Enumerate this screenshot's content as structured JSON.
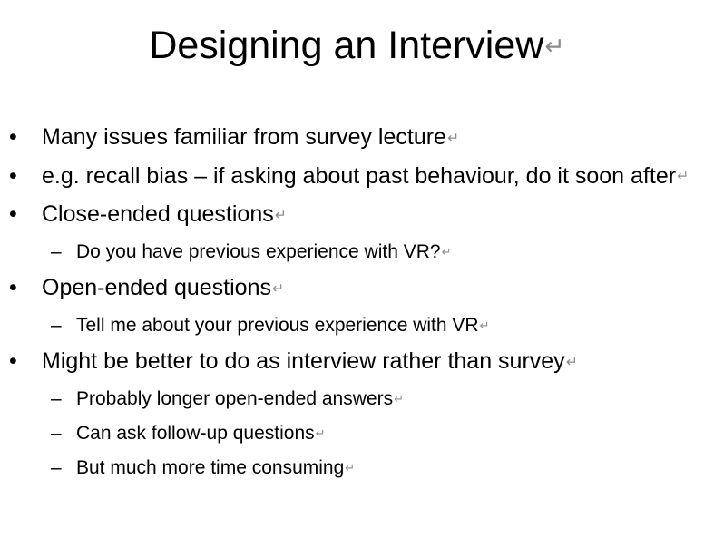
{
  "slide": {
    "title": "Designing an Interview",
    "paragraph_mark": "↵",
    "bullet_marker": "•",
    "sub_marker": "–",
    "items": [
      {
        "level": 1,
        "text": "Many issues familiar from survey lecture"
      },
      {
        "level": 1,
        "text": "e.g. recall bias – if asking about past behaviour, do it soon after"
      },
      {
        "level": 1,
        "text": "Close-ended questions"
      },
      {
        "level": 2,
        "text": "Do you have previous experience with VR?"
      },
      {
        "level": 1,
        "text": "Open-ended questions"
      },
      {
        "level": 2,
        "text": "Tell me about your previous experience with VR"
      },
      {
        "level": 1,
        "text": "Might be better to do as interview rather than survey"
      },
      {
        "level": 2,
        "text": "Probably longer open-ended answers"
      },
      {
        "level": 2,
        "text": "Can ask follow-up questions"
      },
      {
        "level": 2,
        "text": "But much more time consuming"
      }
    ]
  }
}
